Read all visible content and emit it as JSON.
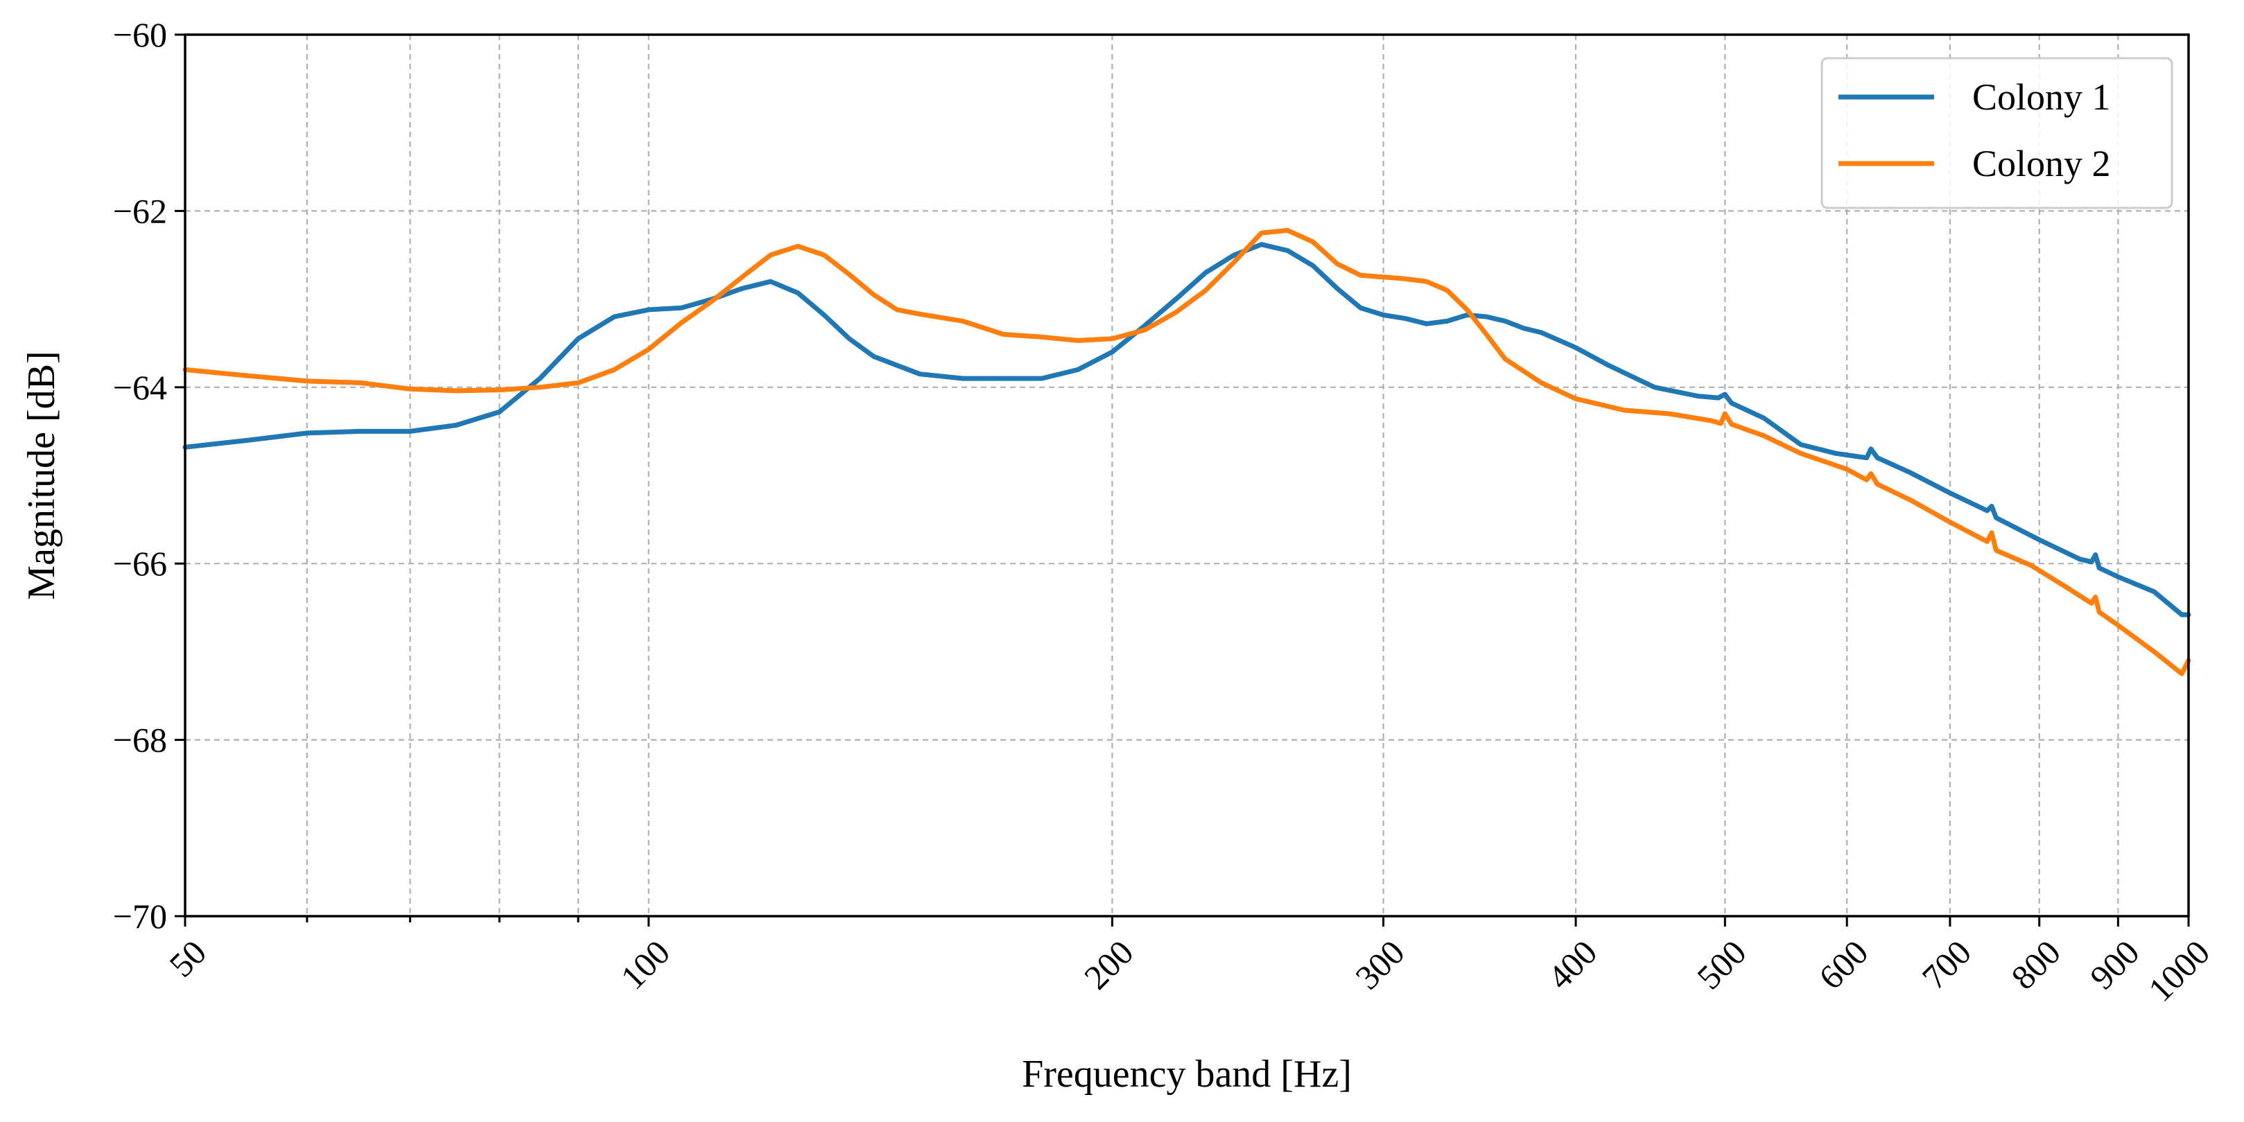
{
  "chart_data": {
    "type": "line",
    "title": "",
    "xlabel": "Frequency band [Hz]",
    "ylabel": "Magnitude [dB]",
    "xscale": "log",
    "xlim": [
      50,
      1000
    ],
    "ylim": [
      -70,
      -60
    ],
    "grid": true,
    "legend_position": "top-right",
    "x_ticks": [
      50,
      100,
      200,
      300,
      400,
      500,
      600,
      700,
      800,
      900,
      1000
    ],
    "x_tick_labels": [
      "50",
      "100",
      "200",
      "300",
      "400",
      "500",
      "600",
      "700",
      "800",
      "900",
      "1000"
    ],
    "x_minor_grid": [
      60,
      70,
      80,
      90
    ],
    "y_ticks": [
      -70,
      -68,
      -66,
      -64,
      -62,
      -60
    ],
    "y_tick_labels": [
      "−70",
      "−68",
      "−66",
      "−64",
      "−62",
      "−60"
    ],
    "series": [
      {
        "name": "Colony 1",
        "color": "#1f77b4",
        "points": [
          [
            50,
            -64.68
          ],
          [
            55,
            -64.6
          ],
          [
            60,
            -64.52
          ],
          [
            65,
            -64.5
          ],
          [
            70,
            -64.5
          ],
          [
            75,
            -64.43
          ],
          [
            80,
            -64.28
          ],
          [
            85,
            -63.9
          ],
          [
            90,
            -63.45
          ],
          [
            95,
            -63.2
          ],
          [
            100,
            -63.12
          ],
          [
            105,
            -63.1
          ],
          [
            110,
            -63.0
          ],
          [
            115,
            -62.88
          ],
          [
            120,
            -62.8
          ],
          [
            125,
            -62.93
          ],
          [
            130,
            -63.18
          ],
          [
            135,
            -63.45
          ],
          [
            140,
            -63.65
          ],
          [
            150,
            -63.85
          ],
          [
            160,
            -63.9
          ],
          [
            170,
            -63.9
          ],
          [
            180,
            -63.9
          ],
          [
            190,
            -63.8
          ],
          [
            200,
            -63.6
          ],
          [
            210,
            -63.3
          ],
          [
            220,
            -63.0
          ],
          [
            230,
            -62.7
          ],
          [
            240,
            -62.5
          ],
          [
            250,
            -62.38
          ],
          [
            260,
            -62.45
          ],
          [
            270,
            -62.62
          ],
          [
            280,
            -62.88
          ],
          [
            290,
            -63.1
          ],
          [
            300,
            -63.18
          ],
          [
            310,
            -63.22
          ],
          [
            320,
            -63.28
          ],
          [
            330,
            -63.25
          ],
          [
            340,
            -63.18
          ],
          [
            350,
            -63.2
          ],
          [
            360,
            -63.25
          ],
          [
            370,
            -63.33
          ],
          [
            380,
            -63.38
          ],
          [
            400,
            -63.55
          ],
          [
            420,
            -63.75
          ],
          [
            450,
            -64.0
          ],
          [
            480,
            -64.1
          ],
          [
            495,
            -64.12
          ],
          [
            500,
            -64.08
          ],
          [
            505,
            -64.18
          ],
          [
            530,
            -64.35
          ],
          [
            560,
            -64.65
          ],
          [
            590,
            -64.75
          ],
          [
            618,
            -64.8
          ],
          [
            622,
            -64.7
          ],
          [
            628,
            -64.8
          ],
          [
            660,
            -64.97
          ],
          [
            700,
            -65.2
          ],
          [
            740,
            -65.4
          ],
          [
            745,
            -65.35
          ],
          [
            750,
            -65.48
          ],
          [
            800,
            -65.73
          ],
          [
            850,
            -65.95
          ],
          [
            865,
            -65.98
          ],
          [
            870,
            -65.9
          ],
          [
            875,
            -66.05
          ],
          [
            900,
            -66.15
          ],
          [
            950,
            -66.32
          ],
          [
            990,
            -66.58
          ],
          [
            1000,
            -66.58
          ]
        ]
      },
      {
        "name": "Colony 2",
        "color": "#ff7f0e",
        "points": [
          [
            50,
            -63.8
          ],
          [
            55,
            -63.87
          ],
          [
            60,
            -63.93
          ],
          [
            65,
            -63.95
          ],
          [
            70,
            -64.02
          ],
          [
            75,
            -64.04
          ],
          [
            80,
            -64.03
          ],
          [
            85,
            -64.0
          ],
          [
            90,
            -63.95
          ],
          [
            95,
            -63.8
          ],
          [
            100,
            -63.57
          ],
          [
            105,
            -63.27
          ],
          [
            110,
            -63.02
          ],
          [
            115,
            -62.75
          ],
          [
            120,
            -62.5
          ],
          [
            125,
            -62.4
          ],
          [
            130,
            -62.5
          ],
          [
            135,
            -62.72
          ],
          [
            140,
            -62.95
          ],
          [
            145,
            -63.12
          ],
          [
            150,
            -63.17
          ],
          [
            160,
            -63.25
          ],
          [
            170,
            -63.4
          ],
          [
            180,
            -63.43
          ],
          [
            190,
            -63.47
          ],
          [
            200,
            -63.45
          ],
          [
            210,
            -63.35
          ],
          [
            220,
            -63.15
          ],
          [
            230,
            -62.9
          ],
          [
            240,
            -62.58
          ],
          [
            250,
            -62.25
          ],
          [
            260,
            -62.22
          ],
          [
            270,
            -62.35
          ],
          [
            280,
            -62.6
          ],
          [
            290,
            -62.73
          ],
          [
            300,
            -62.75
          ],
          [
            310,
            -62.77
          ],
          [
            320,
            -62.8
          ],
          [
            330,
            -62.9
          ],
          [
            340,
            -63.12
          ],
          [
            350,
            -63.4
          ],
          [
            360,
            -63.68
          ],
          [
            380,
            -63.95
          ],
          [
            400,
            -64.13
          ],
          [
            430,
            -64.26
          ],
          [
            460,
            -64.3
          ],
          [
            490,
            -64.38
          ],
          [
            497,
            -64.41
          ],
          [
            500,
            -64.3
          ],
          [
            505,
            -64.42
          ],
          [
            530,
            -64.55
          ],
          [
            560,
            -64.75
          ],
          [
            600,
            -64.93
          ],
          [
            618,
            -65.05
          ],
          [
            622,
            -64.98
          ],
          [
            628,
            -65.1
          ],
          [
            660,
            -65.28
          ],
          [
            700,
            -65.53
          ],
          [
            740,
            -65.75
          ],
          [
            745,
            -65.65
          ],
          [
            750,
            -65.85
          ],
          [
            790,
            -66.02
          ],
          [
            830,
            -66.25
          ],
          [
            865,
            -66.45
          ],
          [
            870,
            -66.38
          ],
          [
            875,
            -66.55
          ],
          [
            900,
            -66.7
          ],
          [
            950,
            -67.0
          ],
          [
            990,
            -67.25
          ],
          [
            1000,
            -67.1
          ]
        ]
      }
    ]
  }
}
